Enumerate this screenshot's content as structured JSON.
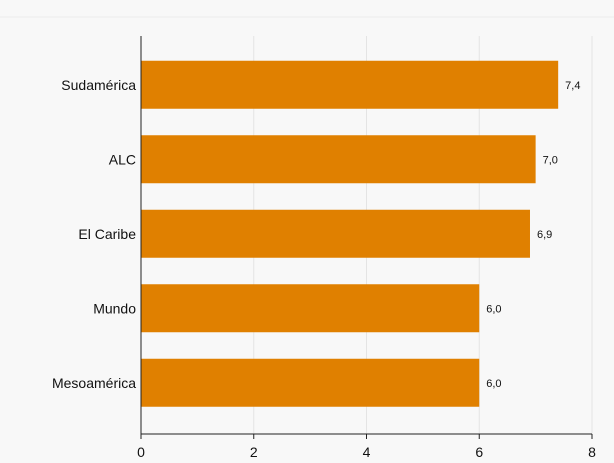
{
  "colors": {
    "background": "#f8f8f8",
    "bar": "#e08000",
    "grid": "#e4e4e4",
    "axis": "#222222"
  },
  "chart_data": {
    "type": "bar",
    "orientation": "horizontal",
    "title": "",
    "xlabel": "",
    "ylabel": "",
    "categories": [
      "Sudamérica",
      "ALC",
      "El Caribe",
      "Mundo",
      "Mesoamérica"
    ],
    "values": [
      7.4,
      7.0,
      6.9,
      6.0,
      6.0
    ],
    "value_labels": [
      "7,4",
      "7,0",
      "6,9",
      "6,0",
      "6,0"
    ],
    "xlim": [
      0,
      8
    ],
    "x_ticks": [
      0,
      2,
      4,
      6,
      8
    ],
    "x_tick_labels": [
      "0",
      "2",
      "4",
      "6",
      "8"
    ],
    "grid": "vertical",
    "legend": "none"
  }
}
